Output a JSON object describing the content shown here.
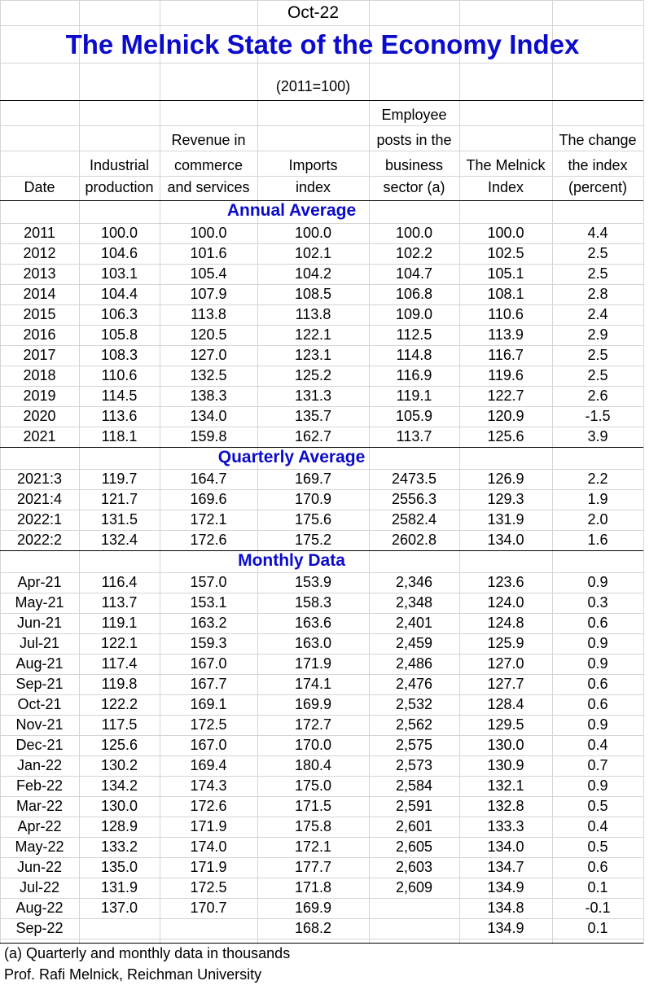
{
  "header": {
    "month": "Oct-22",
    "title": "The Melnick State of the Economy Index",
    "base_note": "(2011=100)"
  },
  "columns": [
    {
      "label": "Date",
      "lines": [
        "Date"
      ]
    },
    {
      "label": "Industrial production",
      "lines": [
        "Industrial",
        "production"
      ]
    },
    {
      "label": "Revenue in commerce and services",
      "lines": [
        "Revenue in",
        "commerce",
        "and services"
      ]
    },
    {
      "label": "Imports index",
      "lines": [
        "Imports",
        "index"
      ]
    },
    {
      "label": "Employee posts in the business sector (a)",
      "lines": [
        "Employee",
        "posts in the",
        "business",
        "sector (a)"
      ]
    },
    {
      "label": "The Melnick Index",
      "lines": [
        "The Melnick",
        "Index"
      ]
    },
    {
      "label": "The change the index (percent)",
      "lines": [
        "The change",
        "the index",
        "(percent)"
      ]
    }
  ],
  "sections": [
    {
      "title": "Annual Average",
      "rows": [
        [
          "2011",
          "100.0",
          "100.0",
          "100.0",
          "100.0",
          "100.0",
          "4.4"
        ],
        [
          "2012",
          "104.6",
          "101.6",
          "102.1",
          "102.2",
          "102.5",
          "2.5"
        ],
        [
          "2013",
          "103.1",
          "105.4",
          "104.2",
          "104.7",
          "105.1",
          "2.5"
        ],
        [
          "2014",
          "104.4",
          "107.9",
          "108.5",
          "106.8",
          "108.1",
          "2.8"
        ],
        [
          "2015",
          "106.3",
          "113.8",
          "113.8",
          "109.0",
          "110.6",
          "2.4"
        ],
        [
          "2016",
          "105.8",
          "120.5",
          "122.1",
          "112.5",
          "113.9",
          "2.9"
        ],
        [
          "2017",
          "108.3",
          "127.0",
          "123.1",
          "114.8",
          "116.7",
          "2.5"
        ],
        [
          "2018",
          "110.6",
          "132.5",
          "125.2",
          "116.9",
          "119.6",
          "2.5"
        ],
        [
          "2019",
          "114.5",
          "138.3",
          "131.3",
          "119.1",
          "122.7",
          "2.6"
        ],
        [
          "2020",
          "113.6",
          "134.0",
          "135.7",
          "105.9",
          "120.9",
          "-1.5"
        ],
        [
          "2021",
          "118.1",
          "159.8",
          "162.7",
          "113.7",
          "125.6",
          "3.9"
        ]
      ]
    },
    {
      "title": "Quarterly Average",
      "rows": [
        [
          "2021:3",
          "119.7",
          "164.7",
          "169.7",
          "2473.5",
          "126.9",
          "2.2"
        ],
        [
          "2021:4",
          "121.7",
          "169.6",
          "170.9",
          "2556.3",
          "129.3",
          "1.9"
        ],
        [
          "2022:1",
          "131.5",
          "172.1",
          "175.6",
          "2582.4",
          "131.9",
          "2.0"
        ],
        [
          "2022:2",
          "132.4",
          "172.6",
          "175.2",
          "2602.8",
          "134.0",
          "1.6"
        ]
      ]
    },
    {
      "title": "Monthly Data",
      "rows": [
        [
          "Apr-21",
          "116.4",
          "157.0",
          "153.9",
          "2,346",
          "123.6",
          "0.9"
        ],
        [
          "May-21",
          "113.7",
          "153.1",
          "158.3",
          "2,348",
          "124.0",
          "0.3"
        ],
        [
          "Jun-21",
          "119.1",
          "163.2",
          "163.6",
          "2,401",
          "124.8",
          "0.6"
        ],
        [
          "Jul-21",
          "122.1",
          "159.3",
          "163.0",
          "2,459",
          "125.9",
          "0.9"
        ],
        [
          "Aug-21",
          "117.4",
          "167.0",
          "171.9",
          "2,486",
          "127.0",
          "0.9"
        ],
        [
          "Sep-21",
          "119.8",
          "167.7",
          "174.1",
          "2,476",
          "127.7",
          "0.6"
        ],
        [
          "Oct-21",
          "122.2",
          "169.1",
          "169.9",
          "2,532",
          "128.4",
          "0.6"
        ],
        [
          "Nov-21",
          "117.5",
          "172.5",
          "172.7",
          "2,562",
          "129.5",
          "0.9"
        ],
        [
          "Dec-21",
          "125.6",
          "167.0",
          "170.0",
          "2,575",
          "130.0",
          "0.4"
        ],
        [
          "Jan-22",
          "130.2",
          "169.4",
          "180.4",
          "2,573",
          "130.9",
          "0.7"
        ],
        [
          "Feb-22",
          "134.2",
          "174.3",
          "175.0",
          "2,584",
          "132.1",
          "0.9"
        ],
        [
          "Mar-22",
          "130.0",
          "172.6",
          "171.5",
          "2,591",
          "132.8",
          "0.5"
        ],
        [
          "Apr-22",
          "128.9",
          "171.9",
          "175.8",
          "2,601",
          "133.3",
          "0.4"
        ],
        [
          "May-22",
          "133.2",
          "174.0",
          "172.1",
          "2,605",
          "134.0",
          "0.5"
        ],
        [
          "Jun-22",
          "135.0",
          "171.9",
          "177.7",
          "2,603",
          "134.7",
          "0.6"
        ],
        [
          "Jul-22",
          "131.9",
          "172.5",
          "171.8",
          "2,609",
          "134.9",
          "0.1"
        ],
        [
          "Aug-22",
          "137.0",
          "170.7",
          "169.9",
          "",
          "134.8",
          "-0.1"
        ],
        [
          "Sep-22",
          "",
          "",
          "168.2",
          "",
          "134.9",
          "0.1"
        ]
      ]
    }
  ],
  "footnotes": {
    "note": "(a) Quarterly and monthly data in thousands",
    "author": "Prof. Rafi Melnick, Reichman University"
  }
}
